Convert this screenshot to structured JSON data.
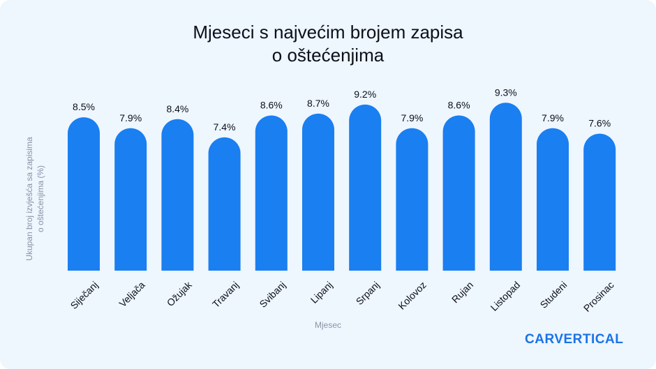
{
  "chart_data": {
    "type": "bar",
    "title_line1": "Mjeseci s najvećim brojem zapisa",
    "title_line2": "o oštećenjima",
    "xlabel": "Mjesec",
    "ylabel_line1": "Ukupan broj izvješća sa zapisima",
    "ylabel_line2": "o oštećenjima (%)",
    "categories": [
      "Siječanj",
      "Veljača",
      "Ožujak",
      "Travanj",
      "Svibanj",
      "Lipanj",
      "Srpanj",
      "Kolovoz",
      "Rujan",
      "Listopad",
      "Studeni",
      "Prosinac"
    ],
    "values": [
      8.5,
      7.9,
      8.4,
      7.4,
      8.6,
      8.7,
      9.2,
      7.9,
      8.6,
      9.3,
      7.9,
      7.6
    ],
    "value_labels": [
      "8.5%",
      "7.9%",
      "8.4%",
      "7.4%",
      "8.6%",
      "8.7%",
      "9.2%",
      "7.9%",
      "8.6%",
      "9.3%",
      "7.9%",
      "7.6%"
    ],
    "bar_color": "#1a7ff0",
    "grid": false,
    "legend": "none"
  },
  "brand": {
    "logo_text": "CARVERTICAL",
    "logo_color": "#1a73e8"
  }
}
